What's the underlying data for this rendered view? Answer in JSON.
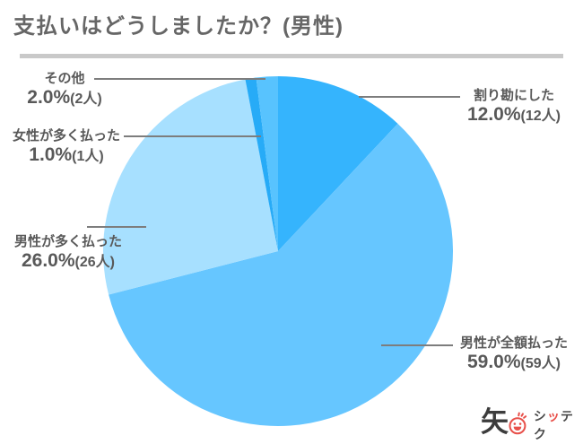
{
  "title": "支払いはどうしましたか？(男性)",
  "chart_data": {
    "type": "pie",
    "title": "支払いはどうしましたか？(男性)",
    "start_angle_deg": -90,
    "direction": "clockwise",
    "unit": "人",
    "total_count": 100,
    "slices": [
      {
        "label": "割り勘にした",
        "percent": 12.0,
        "count": 12,
        "display_percent": "12.0%",
        "display_count": "(12人)",
        "color": "#35b4fd"
      },
      {
        "label": "男性が全額払った",
        "percent": 59.0,
        "count": 59,
        "display_percent": "59.0%",
        "display_count": "(59人)",
        "color": "#66c6ff"
      },
      {
        "label": "男性が多く払った",
        "percent": 26.0,
        "count": 26,
        "display_percent": "26.0%",
        "display_count": "(26人)",
        "color": "#a7e0ff"
      },
      {
        "label": "女性が多く払った",
        "percent": 1.0,
        "count": 1,
        "display_percent": "1.0%",
        "display_count": "(1人)",
        "color": "#27abf7"
      },
      {
        "label": "その他",
        "percent": 2.0,
        "count": 2,
        "display_percent": "2.0%",
        "display_count": "(2人)",
        "color": "#58c3fe"
      }
    ],
    "legend": "none",
    "leader_line_color": "#7d7d7d",
    "label_text_color": "#595959"
  },
  "logo": {
    "kanji": "矢",
    "text_parts": [
      "シ",
      "ッ",
      "テク"
    ],
    "brand_red": "#e8504a",
    "brand_dark": "#4a4a4a"
  }
}
